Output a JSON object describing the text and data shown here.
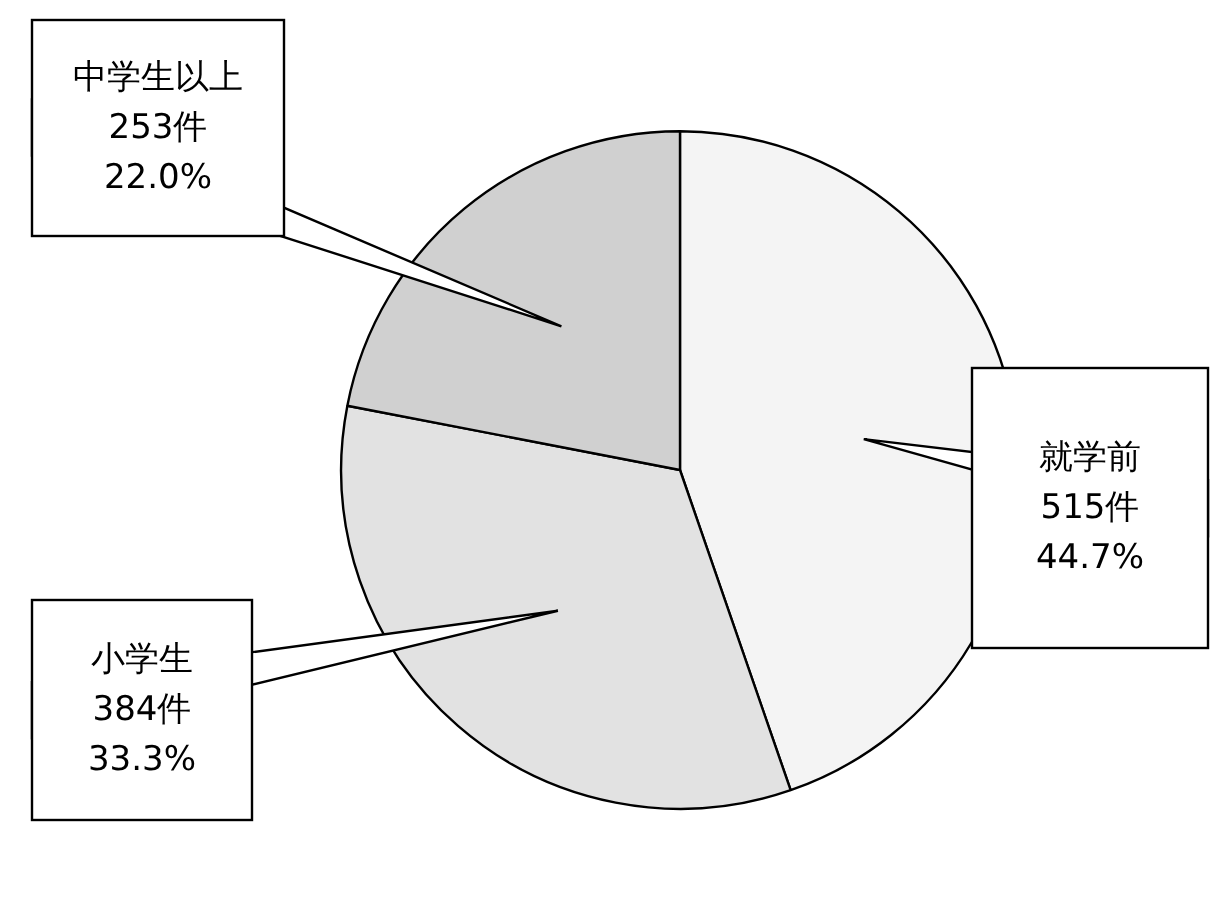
{
  "chart_data": {
    "type": "pie",
    "categories": [
      "就学前",
      "小学生",
      "中学生以上"
    ],
    "values": [
      515,
      384,
      253
    ],
    "colors": [
      "#f4f4f4",
      "#e2e2e2",
      "#d0d0d0"
    ],
    "value_labels": [
      "515件\n44.7%",
      "384件\n33.3%",
      "253件\n22.0%"
    ],
    "legend": false
  }
}
